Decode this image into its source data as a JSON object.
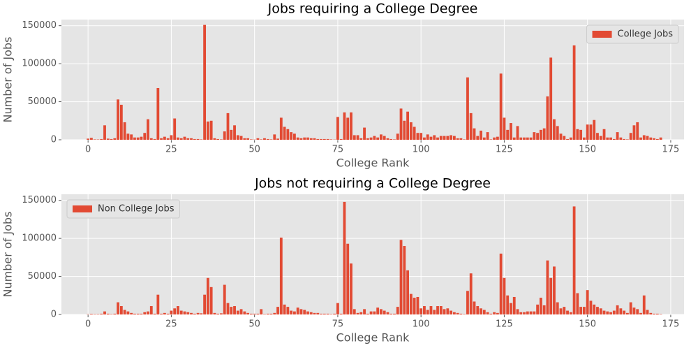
{
  "chart_data": [
    {
      "type": "bar",
      "title": "Jobs requiring a College Degree",
      "xlabel": "College Rank",
      "ylabel": "Number of Jobs",
      "x": [
        0,
        1,
        2,
        3,
        4,
        5,
        6,
        7,
        8,
        9,
        10,
        11,
        12,
        13,
        14,
        15,
        16,
        17,
        18,
        19,
        20,
        21,
        22,
        23,
        24,
        25,
        26,
        27,
        28,
        29,
        30,
        31,
        32,
        33,
        34,
        35,
        36,
        37,
        38,
        39,
        40,
        41,
        42,
        43,
        44,
        45,
        46,
        47,
        48,
        49,
        50,
        51,
        52,
        53,
        54,
        55,
        56,
        57,
        58,
        59,
        60,
        61,
        62,
        63,
        64,
        65,
        66,
        67,
        68,
        69,
        70,
        71,
        72,
        73,
        74,
        75,
        76,
        77,
        78,
        79,
        80,
        81,
        82,
        83,
        84,
        85,
        86,
        87,
        88,
        89,
        90,
        91,
        92,
        93,
        94,
        95,
        96,
        97,
        98,
        99,
        100,
        101,
        102,
        103,
        104,
        105,
        106,
        107,
        108,
        109,
        110,
        111,
        112,
        113,
        114,
        115,
        116,
        117,
        118,
        119,
        120,
        121,
        122,
        123,
        124,
        125,
        126,
        127,
        128,
        129,
        130,
        131,
        132,
        133,
        134,
        135,
        136,
        137,
        138,
        139,
        140,
        141,
        142,
        143,
        144,
        145,
        146,
        147,
        148,
        149,
        150,
        151,
        152,
        153,
        154,
        155,
        156,
        157,
        158,
        159,
        160,
        161,
        162,
        163,
        164,
        165,
        166,
        167,
        168,
        169,
        170,
        171,
        172
      ],
      "series": [
        {
          "name": "College Jobs",
          "color": "#E24A33",
          "values": [
            1500,
            2500,
            500,
            400,
            1000,
            19000,
            1500,
            1000,
            2000,
            53000,
            46000,
            23000,
            8000,
            7000,
            3000,
            3000,
            4000,
            9000,
            27000,
            2000,
            1000,
            68000,
            2000,
            4000,
            2000,
            6000,
            28000,
            3000,
            2000,
            4000,
            2000,
            2000,
            1000,
            1000,
            500,
            151000,
            24000,
            25000,
            2000,
            1000,
            500,
            11000,
            35000,
            13000,
            19000,
            6000,
            5000,
            2000,
            2000,
            500,
            300,
            2000,
            500,
            2000,
            1000,
            500,
            7000,
            1500,
            29000,
            17000,
            14000,
            10000,
            8000,
            3000,
            2000,
            3000,
            3000,
            2000,
            2000,
            1000,
            1000,
            1000,
            1000,
            500,
            300,
            30000,
            1000,
            36000,
            29000,
            36000,
            6000,
            6000,
            2000,
            16000,
            2000,
            3000,
            5000,
            3000,
            7000,
            5000,
            2000,
            1000,
            500,
            8000,
            41000,
            25000,
            37000,
            23000,
            17000,
            9000,
            9000,
            3000,
            7000,
            4000,
            6000,
            3000,
            5000,
            5000,
            5000,
            6000,
            5000,
            2000,
            2000,
            500,
            82000,
            35000,
            15000,
            5000,
            12000,
            3000,
            10000,
            500,
            3000,
            4000,
            87000,
            29000,
            13000,
            22000,
            3000,
            18000,
            3000,
            3000,
            3000,
            3000,
            10000,
            9000,
            13000,
            15000,
            57000,
            108000,
            27000,
            18000,
            8000,
            5000,
            1000,
            3000,
            124000,
            14000,
            13000,
            3000,
            20000,
            20000,
            26000,
            9000,
            5000,
            14000,
            3000,
            3000,
            1000,
            10000,
            3000,
            1000,
            500,
            9000,
            19000,
            23000,
            3000,
            6000,
            5000,
            3000,
            2000,
            1000,
            3000
          ]
        }
      ],
      "xlim": [
        -8,
        179
      ],
      "ylim": [
        0,
        158000
      ],
      "xticks": [
        0,
        25,
        50,
        75,
        100,
        125,
        150,
        175
      ],
      "yticks": [
        0,
        50000,
        100000,
        150000
      ],
      "legend": "upper right",
      "grid": true
    },
    {
      "type": "bar",
      "title": "Jobs not requiring a College Degree",
      "xlabel": "College Rank",
      "ylabel": "Number of Jobs",
      "x": [
        0,
        1,
        2,
        3,
        4,
        5,
        6,
        7,
        8,
        9,
        10,
        11,
        12,
        13,
        14,
        15,
        16,
        17,
        18,
        19,
        20,
        21,
        22,
        23,
        24,
        25,
        26,
        27,
        28,
        29,
        30,
        31,
        32,
        33,
        34,
        35,
        36,
        37,
        38,
        39,
        40,
        41,
        42,
        43,
        44,
        45,
        46,
        47,
        48,
        49,
        50,
        51,
        52,
        53,
        54,
        55,
        56,
        57,
        58,
        59,
        60,
        61,
        62,
        63,
        64,
        65,
        66,
        67,
        68,
        69,
        70,
        71,
        72,
        73,
        74,
        75,
        76,
        77,
        78,
        79,
        80,
        81,
        82,
        83,
        84,
        85,
        86,
        87,
        88,
        89,
        90,
        91,
        92,
        93,
        94,
        95,
        96,
        97,
        98,
        99,
        100,
        101,
        102,
        103,
        104,
        105,
        106,
        107,
        108,
        109,
        110,
        111,
        112,
        113,
        114,
        115,
        116,
        117,
        118,
        119,
        120,
        121,
        122,
        123,
        124,
        125,
        126,
        127,
        128,
        129,
        130,
        131,
        132,
        133,
        134,
        135,
        136,
        137,
        138,
        139,
        140,
        141,
        142,
        143,
        144,
        145,
        146,
        147,
        148,
        149,
        150,
        151,
        152,
        153,
        154,
        155,
        156,
        157,
        158,
        159,
        160,
        161,
        162,
        163,
        164,
        165,
        166,
        167,
        168,
        169,
        170,
        171,
        172
      ],
      "series": [
        {
          "name": "Non College Jobs",
          "color": "#E24A33",
          "values": [
            400,
            800,
            500,
            500,
            1000,
            4000,
            1000,
            500,
            1000,
            16000,
            11000,
            6000,
            4000,
            2000,
            1000,
            1000,
            1000,
            3000,
            4000,
            11000,
            1000,
            26000,
            1000,
            2000,
            1000,
            5000,
            8000,
            11000,
            5000,
            4000,
            3000,
            2000,
            1000,
            2000,
            1500,
            26000,
            48000,
            36000,
            2000,
            1000,
            1500,
            39000,
            15000,
            10000,
            11000,
            5000,
            7000,
            4000,
            2000,
            1000,
            1000,
            1000,
            7000,
            500,
            1000,
            1000,
            2000,
            10000,
            101000,
            13000,
            10000,
            5000,
            4000,
            9000,
            7000,
            6000,
            4000,
            3000,
            2000,
            2000,
            1000,
            1000,
            1000,
            500,
            1000,
            15000,
            1000,
            148000,
            93000,
            67000,
            7000,
            2000,
            3000,
            7000,
            1000,
            4000,
            4000,
            9000,
            7000,
            5000,
            3000,
            1000,
            1000,
            10000,
            98000,
            90000,
            58000,
            27000,
            22000,
            23000,
            8000,
            11000,
            6000,
            11000,
            6000,
            11000,
            11000,
            7000,
            8000,
            5000,
            3000,
            2000,
            1000,
            500,
            31000,
            54000,
            17000,
            11000,
            8000,
            6000,
            3000,
            1000,
            3000,
            2000,
            80000,
            48000,
            25000,
            15000,
            23000,
            7000,
            3000,
            3000,
            4000,
            4000,
            4000,
            13000,
            22000,
            12000,
            71000,
            48000,
            63000,
            16000,
            8000,
            10000,
            5000,
            3000,
            142000,
            28000,
            10000,
            10000,
            32000,
            18000,
            13000,
            10000,
            8000,
            5000,
            4000,
            3000,
            5000,
            12000,
            8000,
            5000,
            2000,
            16000,
            9000,
            7000,
            2000,
            25000,
            6000,
            2000,
            1000,
            1000,
            500
          ]
        }
      ],
      "xlim": [
        -8,
        179
      ],
      "ylim": [
        0,
        158000
      ],
      "xticks": [
        0,
        25,
        50,
        75,
        100,
        125,
        150,
        175
      ],
      "yticks": [
        0,
        50000,
        100000,
        150000
      ],
      "legend": "upper left",
      "grid": true
    }
  ]
}
